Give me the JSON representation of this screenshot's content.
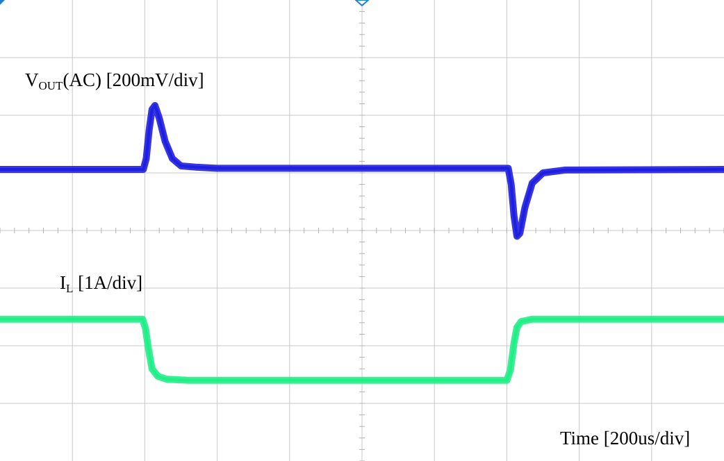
{
  "chart_data": {
    "type": "line",
    "grid": true,
    "divisions": {
      "x": 10,
      "y": 8
    },
    "x_units": "div",
    "labels": {
      "vout_main": "V",
      "vout_sub": "OUT",
      "vout_rest": "(AC) [200mV/div]",
      "il_main": "I",
      "il_sub": "L",
      "il_rest": " [1A/div]",
      "time": "Time [200us/div]"
    },
    "series": [
      {
        "color": "#1f1fe0",
        "points": [
          [
            0,
            5.06
          ],
          [
            1.98,
            5.06
          ],
          [
            2.02,
            5.25
          ],
          [
            2.06,
            5.75
          ],
          [
            2.1,
            6.1
          ],
          [
            2.14,
            6.17
          ],
          [
            2.2,
            5.95
          ],
          [
            2.28,
            5.55
          ],
          [
            2.38,
            5.25
          ],
          [
            2.5,
            5.12
          ],
          [
            2.7,
            5.1
          ],
          [
            3,
            5.08
          ],
          [
            5,
            5.08
          ],
          [
            6.8,
            5.08
          ],
          [
            7.02,
            5.08
          ],
          [
            7.06,
            4.8
          ],
          [
            7.1,
            4.25
          ],
          [
            7.14,
            3.9
          ],
          [
            7.18,
            3.95
          ],
          [
            7.25,
            4.4
          ],
          [
            7.35,
            4.82
          ],
          [
            7.5,
            5.0
          ],
          [
            7.8,
            5.05
          ],
          [
            10,
            5.06
          ]
        ]
      },
      {
        "color": "#22ee88",
        "points": [
          [
            0,
            2.46
          ],
          [
            1.97,
            2.46
          ],
          [
            2.01,
            2.3
          ],
          [
            2.05,
            1.95
          ],
          [
            2.1,
            1.6
          ],
          [
            2.18,
            1.47
          ],
          [
            2.3,
            1.42
          ],
          [
            2.6,
            1.4
          ],
          [
            7.0,
            1.4
          ],
          [
            7.05,
            1.58
          ],
          [
            7.1,
            2.05
          ],
          [
            7.14,
            2.32
          ],
          [
            7.2,
            2.42
          ],
          [
            7.35,
            2.46
          ],
          [
            10,
            2.46
          ]
        ]
      }
    ]
  }
}
